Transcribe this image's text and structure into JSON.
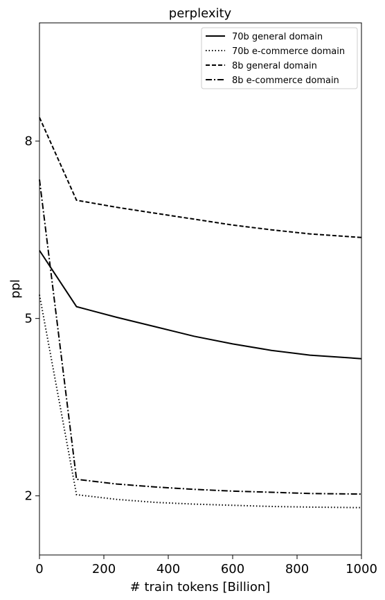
{
  "chart_data": {
    "type": "line",
    "title": "perplexity",
    "xlabel": "# train tokens [Billion]",
    "ylabel": "ppl",
    "xlim": [
      0,
      1000
    ],
    "ylim": [
      1.0,
      10.0
    ],
    "xticks": [
      0,
      200,
      400,
      600,
      800,
      1000
    ],
    "yticks": [
      2,
      5,
      8
    ],
    "grid": false,
    "legend_position": "top-right",
    "series": [
      {
        "name": "70b general domain",
        "style": "solid",
        "color": "#000000",
        "x": [
          0,
          115,
          240,
          360,
          480,
          600,
          720,
          840,
          1000
        ],
        "y": [
          6.15,
          5.2,
          5.02,
          4.86,
          4.7,
          4.57,
          4.46,
          4.38,
          4.32
        ]
      },
      {
        "name": "70b e-commerce domain",
        "style": "dotted",
        "color": "#000000",
        "x": [
          0,
          115,
          240,
          360,
          480,
          600,
          720,
          840,
          1000
        ],
        "y": [
          5.4,
          2.02,
          1.94,
          1.89,
          1.86,
          1.84,
          1.82,
          1.81,
          1.8
        ]
      },
      {
        "name": "8b general domain",
        "style": "dashed",
        "color": "#000000",
        "x": [
          0,
          115,
          240,
          360,
          480,
          600,
          720,
          840,
          1000
        ],
        "y": [
          8.4,
          7.0,
          6.88,
          6.78,
          6.68,
          6.58,
          6.5,
          6.43,
          6.37
        ]
      },
      {
        "name": "8b e-commerce domain",
        "style": "dashdot",
        "color": "#000000",
        "x": [
          0,
          115,
          240,
          360,
          480,
          600,
          720,
          840,
          1000
        ],
        "y": [
          7.35,
          2.28,
          2.2,
          2.15,
          2.11,
          2.08,
          2.06,
          2.04,
          2.03
        ]
      }
    ]
  }
}
